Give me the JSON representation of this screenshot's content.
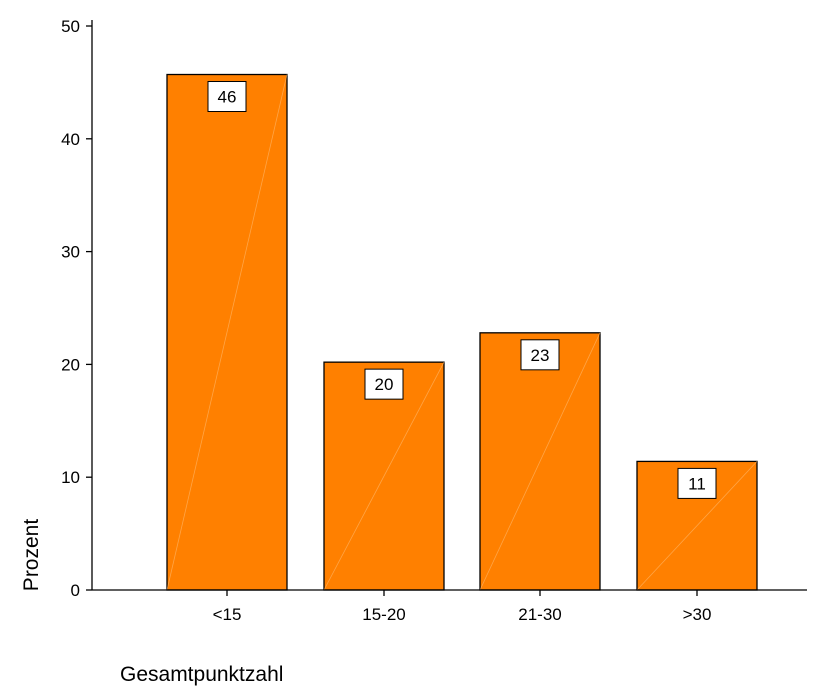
{
  "chart_data": {
    "type": "bar",
    "title": "",
    "xlabel": "Gesamtpunktzahl",
    "ylabel": "Prozent",
    "categories": [
      "<15",
      "15-20",
      "21-30",
      ">30"
    ],
    "values": [
      45.7,
      20.2,
      22.8,
      11.4
    ],
    "data_labels": [
      "46",
      "20",
      "23",
      "11"
    ],
    "yticks": [
      0,
      10,
      20,
      30,
      40,
      50
    ],
    "ytick_labels": [
      "0",
      "10",
      "20",
      "30",
      "40",
      "50"
    ],
    "ylim": [
      0,
      50
    ],
    "grid": false,
    "legend": "none",
    "bar_color": "#ff8000",
    "bar_edge_color": "#000000"
  }
}
